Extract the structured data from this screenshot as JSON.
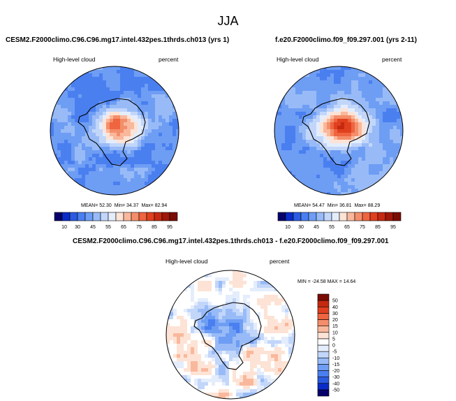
{
  "figure": {
    "title": "JJA"
  },
  "chart_data": [
    {
      "type": "heatmap",
      "projection": "south-polar-stereographic",
      "title": "CESM2.F2000climo.C96.C96.mg17.intel.432pes.1thrds.ch013 (yrs 1)",
      "variable": "High-level cloud",
      "units": "percent",
      "stats": {
        "mean_label": "MEAN=",
        "mean": "52.30",
        "min_label": "Min=",
        "min": "34.37",
        "max_label": "Max=",
        "max": "82.94"
      },
      "colorbar": {
        "orientation": "horizontal",
        "ticks": [
          "10",
          "30",
          "45",
          "55",
          "65",
          "75",
          "85",
          "95"
        ],
        "levels": [
          5,
          10,
          20,
          30,
          40,
          45,
          50,
          55,
          60,
          65,
          70,
          75,
          80,
          85,
          90,
          95
        ],
        "colors": [
          "#08006a",
          "#0a2bc8",
          "#2a5be0",
          "#4a7ff0",
          "#6e9df4",
          "#98bbf7",
          "#c2d6fa",
          "#e4edfc",
          "#fde3d5",
          "#f9b89c",
          "#f48e6a",
          "#ee6540",
          "#e0401e",
          "#c52a10",
          "#a01808",
          "#7a0c04"
        ]
      }
    },
    {
      "type": "heatmap",
      "projection": "south-polar-stereographic",
      "title": "f.e20.F2000climo.f09_f09.297.001 (yrs 2-11)",
      "variable": "High-level cloud",
      "units": "percent",
      "stats": {
        "mean_label": "MEAN=",
        "mean": "54.47",
        "min_label": "Min=",
        "min": "36.81",
        "max_label": "Max=",
        "max": "88.29"
      },
      "colorbar": {
        "orientation": "horizontal",
        "ticks": [
          "10",
          "30",
          "45",
          "55",
          "65",
          "75",
          "85",
          "95"
        ],
        "levels": [
          5,
          10,
          20,
          30,
          40,
          45,
          50,
          55,
          60,
          65,
          70,
          75,
          80,
          85,
          90,
          95
        ],
        "colors": [
          "#08006a",
          "#0a2bc8",
          "#2a5be0",
          "#4a7ff0",
          "#6e9df4",
          "#98bbf7",
          "#c2d6fa",
          "#e4edfc",
          "#fde3d5",
          "#f9b89c",
          "#f48e6a",
          "#ee6540",
          "#e0401e",
          "#c52a10",
          "#a01808",
          "#7a0c04"
        ]
      }
    },
    {
      "type": "heatmap",
      "projection": "south-polar-stereographic",
      "title": "CESM2.F2000climo.C96.C96.mg17.intel.432pes.1thrds.ch013 - f.e20.F2000climo.f09_f09.297.001",
      "variable": "High-level cloud",
      "units": "percent",
      "stats": {
        "min_label": "MIN =",
        "min": "-24.58",
        "max_label": "MAX =",
        "max": "14.64"
      },
      "colorbar": {
        "orientation": "vertical",
        "ticks": [
          "-50",
          "-40",
          "-30",
          "-20",
          "-15",
          "-10",
          "-5",
          "0",
          "5",
          "10",
          "15",
          "20",
          "30",
          "40",
          "50"
        ],
        "colors": [
          "#08006a",
          "#0a2bc8",
          "#2a5be0",
          "#4a7ff0",
          "#6e9df4",
          "#98bbf7",
          "#c2d6fa",
          "#e4edfc",
          "#ffffff",
          "#fde3d5",
          "#f9b89c",
          "#f48e6a",
          "#ee6540",
          "#e0401e",
          "#c52a10",
          "#7a0c04"
        ]
      }
    }
  ]
}
